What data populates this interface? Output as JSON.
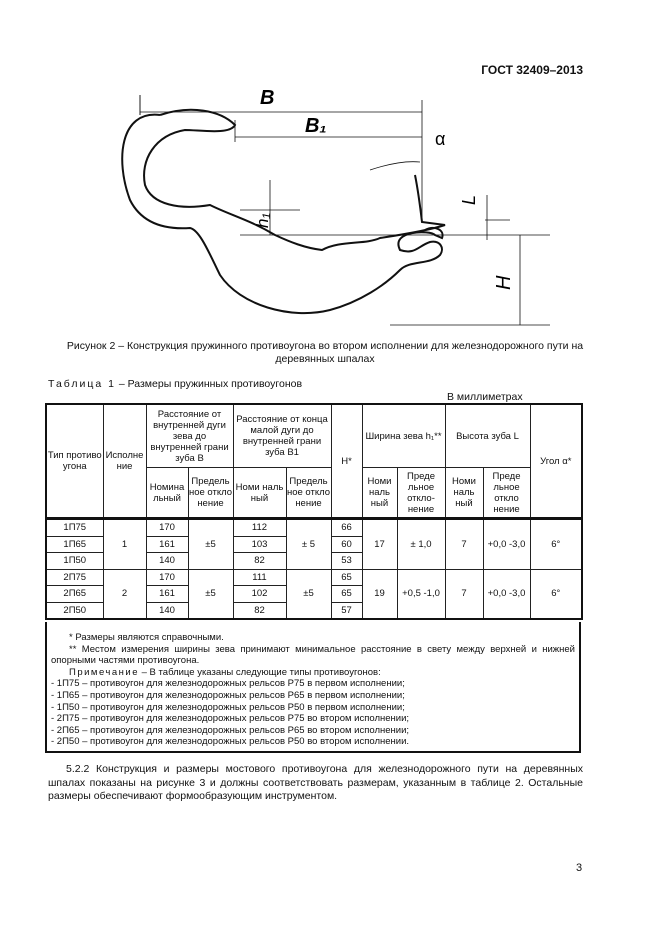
{
  "header": {
    "doc_code": "ГОСТ 32409–2013"
  },
  "figure": {
    "labels": {
      "B": "B",
      "B1": "B₁",
      "alpha": "α",
      "L": "L",
      "h1": "h₁",
      "H": "H"
    },
    "caption": "Рисунок 2 – Конструкция пружинного противоугона во втором исполнении для железнодорожного пути на деревянных шпалах"
  },
  "table": {
    "title_prefix": "Таблица 1",
    "title": " – Размеры пружинных противоугонов",
    "units": "В миллиметрах",
    "headers": {
      "type": "Тип противо угона",
      "version": "Исполне ние",
      "B": "Расстояние от внутренней дуги зева до внутренней грани зуба В",
      "B1": "Расстояние от конца малой дуги до внутренней грани зуба В1",
      "H": "Н*",
      "h1": "Ширина зева h₁**",
      "L": "Высота зуба L",
      "angle": "Угол α*",
      "B_nom": "Номина льный",
      "B_dev": "Предель ное откло нение",
      "B1_nom": "Номи наль ный",
      "B1_dev": "Предель ное откло нение",
      "h1_nom": "Номи наль ный",
      "h1_dev": "Преде льное откло- нение",
      "L_nom": "Номи наль ный",
      "L_dev": "Преде льное откло нение"
    },
    "groups": [
      {
        "version": "1",
        "B_dev": "±5",
        "B1_dev": "± 5",
        "h1_nom": "17",
        "h1_dev": "± 1,0",
        "L_nom": "7",
        "L_dev": "+0,0 -3,0",
        "angle": "6°",
        "rows": [
          {
            "type": "1П75",
            "B": "170",
            "B1": "112",
            "H": "66"
          },
          {
            "type": "1П65",
            "B": "161",
            "B1": "103",
            "H": "60"
          },
          {
            "type": "1П50",
            "B": "140",
            "B1": "82",
            "H": "53"
          }
        ]
      },
      {
        "version": "2",
        "B_dev": "±5",
        "B1_dev": "±5",
        "h1_nom": "19",
        "h1_dev": "+0,5 -1,0",
        "L_nom": "7",
        "L_dev": "+0,0 -3,0",
        "angle": "6°",
        "rows": [
          {
            "type": "2П75",
            "B": "170",
            "B1": "111",
            "H": "65"
          },
          {
            "type": "2П65",
            "B": "161",
            "B1": "102",
            "H": "65"
          },
          {
            "type": "2П50",
            "B": "140",
            "B1": "82",
            "H": "57"
          }
        ]
      }
    ],
    "notes": {
      "n1": "* Размеры являются справочными.",
      "n2": "** Местом измерения ширины зева принимают минимальное расстояние в свету между верхней и нижней опорными частями противоугона.",
      "note_label": "Примечание",
      "note_text": " – В таблице указаны следующие типы противоугонов:",
      "items": [
        "- 1П75 – противоугон для железнодорожных рельсов Р75 в первом исполнении;",
        "- 1П65 – противоугон для железнодорожных рельсов Р65 в первом исполнении;",
        "- 1П50 – противоугон для железнодорожных рельсов Р50 в первом исполнении;",
        "- 2П75 – противоугон для железнодорожных рельсов Р75 во втором исполнении;",
        "- 2П65 – противоугон для железнодорожных рельсов Р65 во втором исполнении;",
        "- 2П50 – противоугон для железнодорожных рельсов Р50 во втором исполнении."
      ]
    }
  },
  "paragraph": "5.2.2 Конструкция и размеры мостового противоугона для железнодорожного пути на деревянных шпалах показаны на рисунке 3 и должны соответствовать размерам, указанным в таблице 2. Остальные размеры обеспечивают формообразующим инструментом.",
  "page_number": "3"
}
